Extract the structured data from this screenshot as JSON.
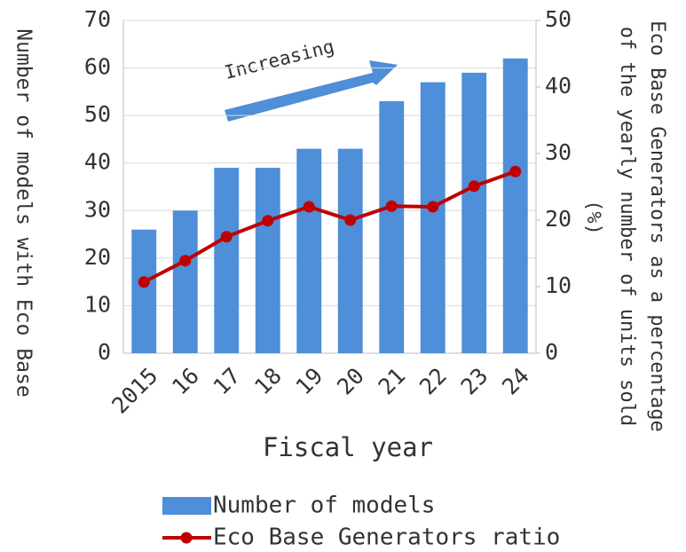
{
  "chart_data": {
    "type": "bar-line",
    "categories": [
      "2015",
      "16",
      "17",
      "18",
      "19",
      "20",
      "21",
      "22",
      "23",
      "24"
    ],
    "series": [
      {
        "name": "Number of models",
        "color": "#4f8ed8",
        "type": "bar",
        "values": [
          26,
          30,
          39,
          39,
          43,
          43,
          53,
          57,
          59,
          62
        ]
      },
      {
        "name": "Eco Base Generators ratio",
        "color": "#c00000",
        "type": "line",
        "axis": "y2",
        "values": [
          10.7,
          13.9,
          17.5,
          19.9,
          22,
          20,
          22.1,
          22,
          25.1,
          27.3
        ]
      }
    ],
    "xlabel": "Fiscal year",
    "ylabel": "Number of models with Eco Base",
    "y2label": [
      "Eco Base Generators as a percentage",
      "of the yearly number of units sold",
      "(%)"
    ],
    "annotation": "Increasing",
    "ylim": [
      0,
      70
    ],
    "yticks": [
      0,
      10,
      20,
      30,
      40,
      50,
      60,
      70
    ],
    "y2lim": [
      0,
      50
    ],
    "y2ticks": [
      0,
      10,
      20,
      30,
      40,
      50
    ],
    "grid": true,
    "legend": "bottom"
  }
}
